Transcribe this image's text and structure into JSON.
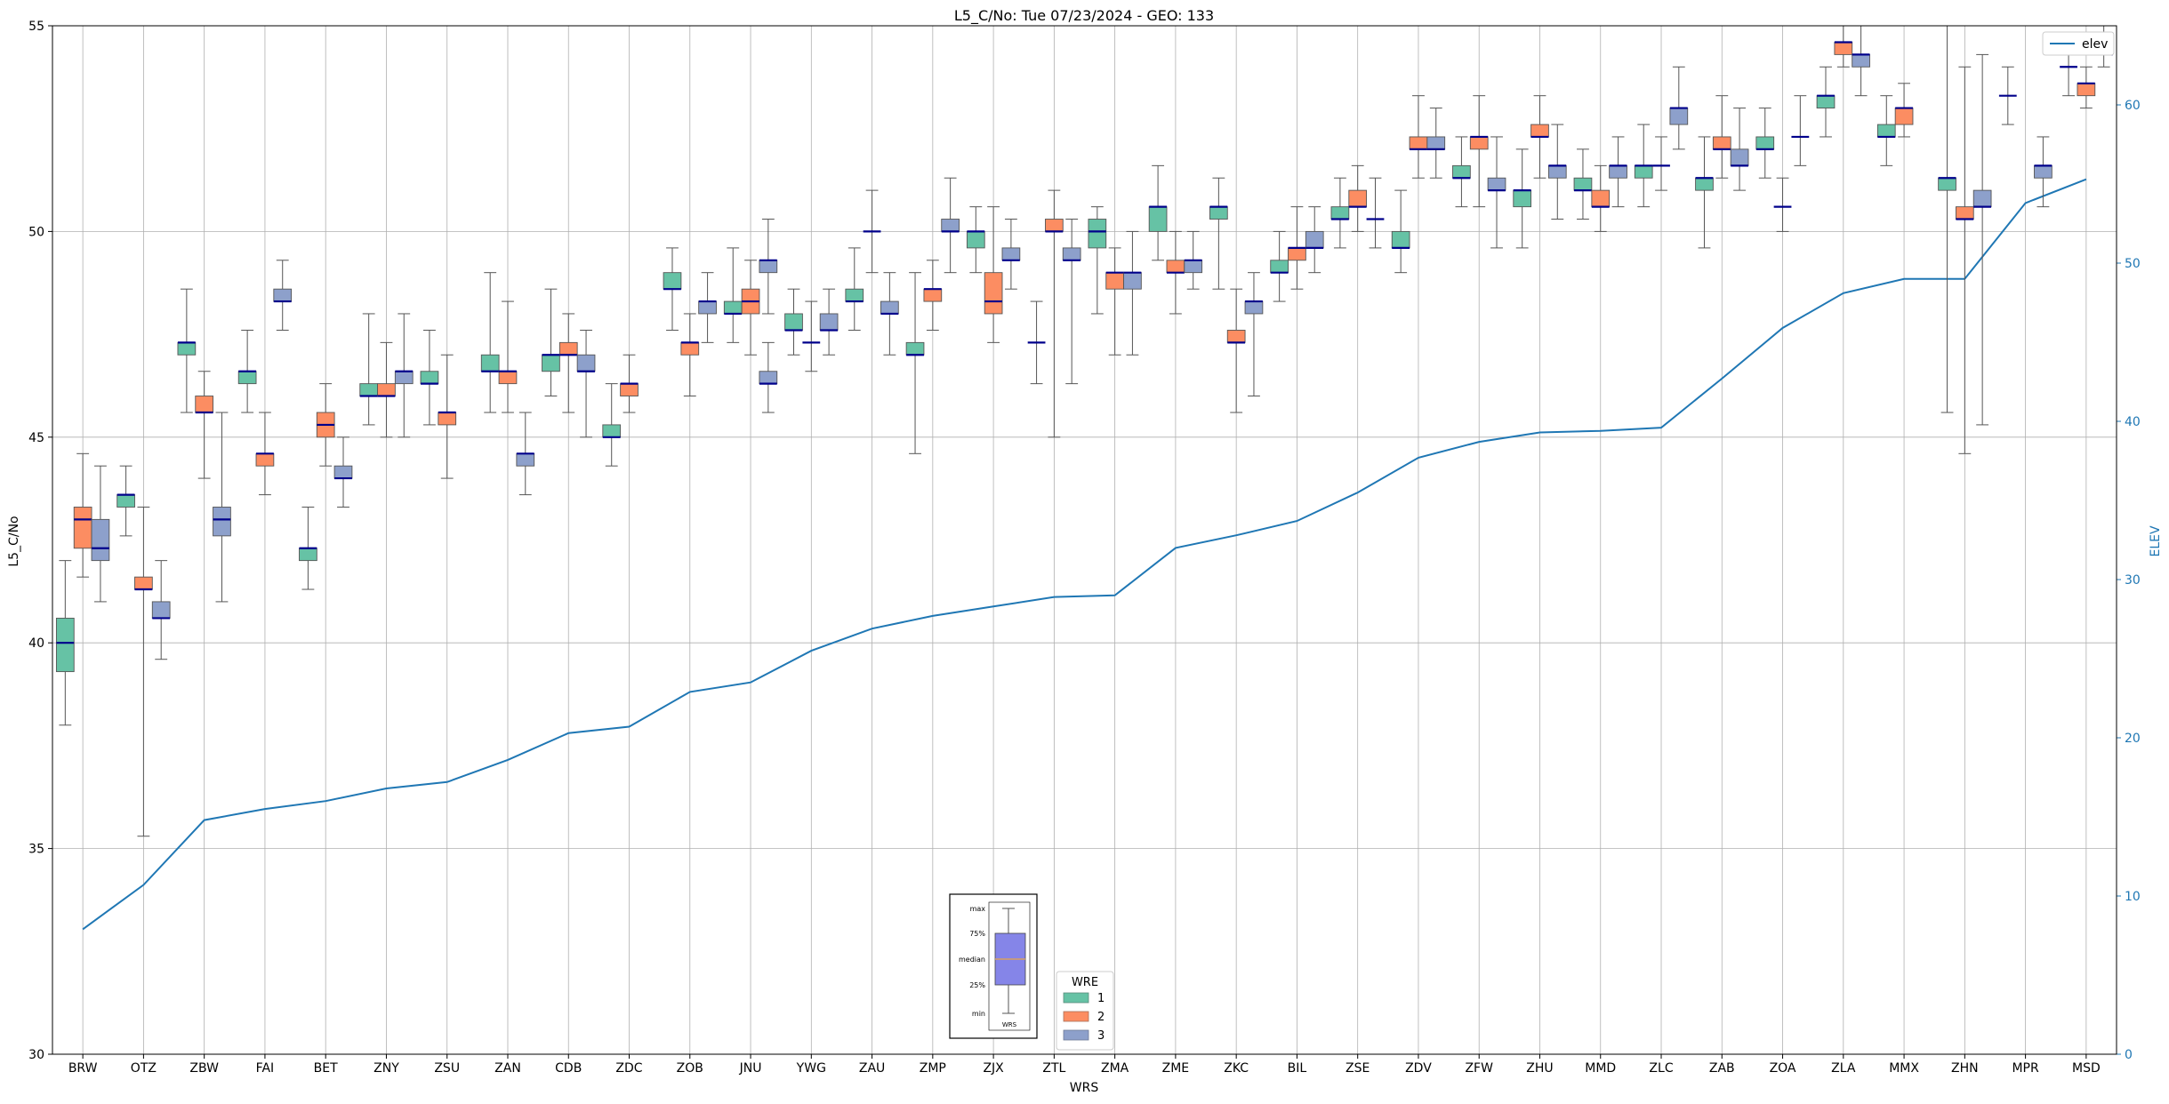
{
  "chart_data": {
    "type": "box",
    "title": "L5_C/No: Tue 07/23/2024 - GEO: 133",
    "xlabel": "WRS",
    "ylabel": "L5_C/No",
    "y2label": "ELEV",
    "ylim": [
      30,
      55
    ],
    "y2lim": [
      0,
      65
    ],
    "yticks": [
      30,
      35,
      40,
      45,
      50,
      55
    ],
    "y2ticks": [
      0,
      10,
      20,
      30,
      40,
      50,
      60
    ],
    "grid": true,
    "categories": [
      "BRW",
      "OTZ",
      "ZBW",
      "FAI",
      "BET",
      "ZNY",
      "ZSU",
      "ZAN",
      "CDB",
      "ZDC",
      "ZOB",
      "JNU",
      "YWG",
      "ZAU",
      "ZMP",
      "ZJX",
      "ZTL",
      "ZMA",
      "ZME",
      "ZKC",
      "BIL",
      "ZSE",
      "ZDV",
      "ZFW",
      "ZHU",
      "MMD",
      "ZLC",
      "ZAB",
      "ZOA",
      "ZLA",
      "MMX",
      "ZHN",
      "MPR",
      "MSD"
    ],
    "series_colors": {
      "1": "#66c2a5",
      "2": "#fc8d62",
      "3": "#8da0cb"
    },
    "median_color": "#00008b",
    "elev_color": "#1f77b4",
    "elev": [
      7.9,
      10.7,
      14.8,
      15.5,
      16.0,
      16.8,
      17.2,
      18.6,
      20.3,
      20.7,
      22.9,
      23.5,
      25.5,
      26.9,
      27.7,
      28.3,
      28.9,
      29.0,
      32.0,
      32.8,
      33.7,
      35.5,
      37.7,
      38.7,
      39.3,
      39.4,
      39.6,
      42.7,
      45.9,
      48.1,
      49.0,
      49.0,
      53.8,
      55.3
    ],
    "boxes": [
      {
        "wrs": "BRW",
        "rcvr": 1,
        "min": 38.0,
        "q1": 39.3,
        "med": 40.0,
        "q3": 40.6,
        "max": 42.0
      },
      {
        "wrs": "BRW",
        "rcvr": 2,
        "min": 41.6,
        "q1": 42.3,
        "med": 43.0,
        "q3": 43.3,
        "max": 44.6
      },
      {
        "wrs": "BRW",
        "rcvr": 3,
        "min": 41.0,
        "q1": 42.0,
        "med": 42.3,
        "q3": 43.0,
        "max": 44.3
      },
      {
        "wrs": "OTZ",
        "rcvr": 1,
        "min": 42.6,
        "q1": 43.3,
        "med": 43.6,
        "q3": 43.6,
        "max": 44.3
      },
      {
        "wrs": "OTZ",
        "rcvr": 2,
        "min": 35.3,
        "q1": 41.3,
        "med": 41.3,
        "q3": 41.6,
        "max": 43.3
      },
      {
        "wrs": "OTZ",
        "rcvr": 3,
        "min": 39.6,
        "q1": 40.6,
        "med": 40.6,
        "q3": 41.0,
        "max": 42.0
      },
      {
        "wrs": "ZBW",
        "rcvr": 1,
        "min": 45.6,
        "q1": 47.0,
        "med": 47.3,
        "q3": 47.3,
        "max": 48.6
      },
      {
        "wrs": "ZBW",
        "rcvr": 2,
        "min": 44.0,
        "q1": 45.6,
        "med": 45.6,
        "q3": 46.0,
        "max": 46.6
      },
      {
        "wrs": "ZBW",
        "rcvr": 3,
        "min": 41.0,
        "q1": 42.6,
        "med": 43.0,
        "q3": 43.3,
        "max": 45.6
      },
      {
        "wrs": "FAI",
        "rcvr": 1,
        "min": 45.6,
        "q1": 46.3,
        "med": 46.6,
        "q3": 46.6,
        "max": 47.6
      },
      {
        "wrs": "FAI",
        "rcvr": 2,
        "min": 43.6,
        "q1": 44.3,
        "med": 44.6,
        "q3": 44.6,
        "max": 45.6
      },
      {
        "wrs": "FAI",
        "rcvr": 3,
        "min": 47.6,
        "q1": 48.3,
        "med": 48.3,
        "q3": 48.6,
        "max": 49.3
      },
      {
        "wrs": "BET",
        "rcvr": 1,
        "min": 41.3,
        "q1": 42.0,
        "med": 42.3,
        "q3": 42.3,
        "max": 43.3
      },
      {
        "wrs": "BET",
        "rcvr": 2,
        "min": 44.3,
        "q1": 45.0,
        "med": 45.3,
        "q3": 45.6,
        "max": 46.3
      },
      {
        "wrs": "BET",
        "rcvr": 3,
        "min": 43.3,
        "q1": 44.0,
        "med": 44.0,
        "q3": 44.3,
        "max": 45.0
      },
      {
        "wrs": "ZNY",
        "rcvr": 1,
        "min": 45.3,
        "q1": 46.0,
        "med": 46.0,
        "q3": 46.3,
        "max": 48.0
      },
      {
        "wrs": "ZNY",
        "rcvr": 2,
        "min": 45.0,
        "q1": 46.0,
        "med": 46.0,
        "q3": 46.3,
        "max": 47.3
      },
      {
        "wrs": "ZNY",
        "rcvr": 3,
        "min": 45.0,
        "q1": 46.3,
        "med": 46.6,
        "q3": 46.6,
        "max": 48.0
      },
      {
        "wrs": "ZSU",
        "rcvr": 1,
        "min": 45.3,
        "q1": 46.3,
        "med": 46.3,
        "q3": 46.6,
        "max": 47.6
      },
      {
        "wrs": "ZSU",
        "rcvr": 2,
        "min": 44.0,
        "q1": 45.3,
        "med": 45.6,
        "q3": 45.6,
        "max": 47.0
      },
      {
        "wrs": "ZAN",
        "rcvr": 1,
        "min": 45.6,
        "q1": 46.6,
        "med": 46.6,
        "q3": 47.0,
        "max": 49.0
      },
      {
        "wrs": "ZAN",
        "rcvr": 2,
        "min": 45.6,
        "q1": 46.3,
        "med": 46.6,
        "q3": 46.6,
        "max": 48.3
      },
      {
        "wrs": "ZAN",
        "rcvr": 3,
        "min": 43.6,
        "q1": 44.3,
        "med": 44.6,
        "q3": 44.6,
        "max": 45.6
      },
      {
        "wrs": "CDB",
        "rcvr": 1,
        "min": 46.0,
        "q1": 46.6,
        "med": 47.0,
        "q3": 47.0,
        "max": 48.6
      },
      {
        "wrs": "CDB",
        "rcvr": 2,
        "min": 45.6,
        "q1": 47.0,
        "med": 47.0,
        "q3": 47.3,
        "max": 48.0
      },
      {
        "wrs": "CDB",
        "rcvr": 3,
        "min": 45.0,
        "q1": 46.6,
        "med": 46.6,
        "q3": 47.0,
        "max": 47.6
      },
      {
        "wrs": "ZDC",
        "rcvr": 1,
        "min": 44.3,
        "q1": 45.0,
        "med": 45.0,
        "q3": 45.3,
        "max": 46.3
      },
      {
        "wrs": "ZDC",
        "rcvr": 2,
        "min": 45.6,
        "q1": 46.0,
        "med": 46.3,
        "q3": 46.3,
        "max": 47.0
      },
      {
        "wrs": "ZOB",
        "rcvr": 3,
        "min": 47.3,
        "q1": 48.0,
        "med": 48.3,
        "q3": 48.3,
        "max": 49.0
      },
      {
        "wrs": "ZOB",
        "rcvr": 1,
        "min": 47.6,
        "q1": 48.6,
        "med": 48.6,
        "q3": 49.0,
        "max": 49.6
      },
      {
        "wrs": "ZOB",
        "rcvr": 2,
        "min": 46.0,
        "q1": 47.0,
        "med": 47.3,
        "q3": 47.3,
        "max": 48.0
      },
      {
        "wrs": "JNU",
        "rcvr": 3,
        "min": 48.0,
        "q1": 49.0,
        "med": 49.3,
        "q3": 49.3,
        "max": 50.3
      },
      {
        "wrs": "JNU",
        "rcvr": 1,
        "min": 47.3,
        "q1": 48.0,
        "med": 48.0,
        "q3": 48.3,
        "max": 49.6
      },
      {
        "wrs": "JNU",
        "rcvr": 2,
        "min": 47.0,
        "q1": 48.0,
        "med": 48.3,
        "q3": 48.6,
        "max": 49.3
      },
      {
        "wrs": "JNU",
        "rcvr": 3,
        "min": 45.6,
        "q1": 46.3,
        "med": 46.3,
        "q3": 46.6,
        "max": 47.3
      },
      {
        "wrs": "YWG",
        "rcvr": 1,
        "min": 47.0,
        "q1": 47.6,
        "med": 47.6,
        "q3": 48.0,
        "max": 48.6
      },
      {
        "wrs": "YWG",
        "rcvr": 2,
        "min": 46.6,
        "q1": 47.3,
        "med": 47.3,
        "q3": 47.3,
        "max": 48.3
      },
      {
        "wrs": "YWG",
        "rcvr": 3,
        "min": 47.0,
        "q1": 47.6,
        "med": 47.6,
        "q3": 48.0,
        "max": 48.6
      },
      {
        "wrs": "ZAU",
        "rcvr": 1,
        "min": 47.6,
        "q1": 48.3,
        "med": 48.3,
        "q3": 48.6,
        "max": 49.6
      },
      {
        "wrs": "ZAU",
        "rcvr": 2,
        "min": 49.0,
        "q1": 50.0,
        "med": 50.0,
        "q3": 50.0,
        "max": 51.0
      },
      {
        "wrs": "ZAU",
        "rcvr": 3,
        "min": 47.0,
        "q1": 48.0,
        "med": 48.0,
        "q3": 48.3,
        "max": 49.0
      },
      {
        "wrs": "ZMP",
        "rcvr": 1,
        "min": 44.6,
        "q1": 47.0,
        "med": 47.0,
        "q3": 47.3,
        "max": 49.0
      },
      {
        "wrs": "ZMP",
        "rcvr": 2,
        "min": 47.6,
        "q1": 48.3,
        "med": 48.6,
        "q3": 48.6,
        "max": 49.3
      },
      {
        "wrs": "ZMP",
        "rcvr": 3,
        "min": 49.0,
        "q1": 50.0,
        "med": 50.0,
        "q3": 50.3,
        "max": 51.3
      },
      {
        "wrs": "ZJX",
        "rcvr": 1,
        "min": 49.0,
        "q1": 49.6,
        "med": 50.0,
        "q3": 50.0,
        "max": 50.6
      },
      {
        "wrs": "ZJX",
        "rcvr": 2,
        "min": 47.3,
        "q1": 48.0,
        "med": 48.3,
        "q3": 49.0,
        "max": 50.6
      },
      {
        "wrs": "ZJX",
        "rcvr": 3,
        "min": 48.6,
        "q1": 49.3,
        "med": 49.3,
        "q3": 49.6,
        "max": 50.3
      },
      {
        "wrs": "ZTL",
        "rcvr": 1,
        "min": 46.3,
        "q1": 47.3,
        "med": 47.3,
        "q3": 47.3,
        "max": 48.3
      },
      {
        "wrs": "ZTL",
        "rcvr": 2,
        "min": 45.0,
        "q1": 50.0,
        "med": 50.0,
        "q3": 50.3,
        "max": 51.0
      },
      {
        "wrs": "ZTL",
        "rcvr": 3,
        "min": 46.3,
        "q1": 49.3,
        "med": 49.3,
        "q3": 49.6,
        "max": 50.3
      },
      {
        "wrs": "ZMA",
        "rcvr": 1,
        "min": 48.0,
        "q1": 49.6,
        "med": 50.0,
        "q3": 50.3,
        "max": 50.6
      },
      {
        "wrs": "ZMA",
        "rcvr": 2,
        "min": 47.0,
        "q1": 48.6,
        "med": 49.0,
        "q3": 49.0,
        "max": 49.6
      },
      {
        "wrs": "ZMA",
        "rcvr": 3,
        "min": 47.0,
        "q1": 48.6,
        "med": 49.0,
        "q3": 49.0,
        "max": 50.0
      },
      {
        "wrs": "ZME",
        "rcvr": 1,
        "min": 49.3,
        "q1": 50.0,
        "med": 50.6,
        "q3": 50.6,
        "max": 51.6
      },
      {
        "wrs": "ZME",
        "rcvr": 2,
        "min": 48.0,
        "q1": 49.0,
        "med": 49.0,
        "q3": 49.3,
        "max": 50.0
      },
      {
        "wrs": "ZME",
        "rcvr": 3,
        "min": 48.6,
        "q1": 49.0,
        "med": 49.3,
        "q3": 49.3,
        "max": 50.0
      },
      {
        "wrs": "ZKC",
        "rcvr": 1,
        "min": 48.6,
        "q1": 50.3,
        "med": 50.6,
        "q3": 50.6,
        "max": 51.3
      },
      {
        "wrs": "ZKC",
        "rcvr": 2,
        "min": 45.6,
        "q1": 47.3,
        "med": 47.3,
        "q3": 47.6,
        "max": 48.6
      },
      {
        "wrs": "ZKC",
        "rcvr": 3,
        "min": 46.0,
        "q1": 48.0,
        "med": 48.3,
        "q3": 48.3,
        "max": 49.0
      },
      {
        "wrs": "BIL",
        "rcvr": 1,
        "min": 48.3,
        "q1": 49.0,
        "med": 49.0,
        "q3": 49.3,
        "max": 50.0
      },
      {
        "wrs": "BIL",
        "rcvr": 2,
        "min": 48.6,
        "q1": 49.3,
        "med": 49.6,
        "q3": 49.6,
        "max": 50.6
      },
      {
        "wrs": "BIL",
        "rcvr": 3,
        "min": 49.0,
        "q1": 49.6,
        "med": 49.6,
        "q3": 50.0,
        "max": 50.6
      },
      {
        "wrs": "ZSE",
        "rcvr": 1,
        "min": 49.6,
        "q1": 50.3,
        "med": 50.3,
        "q3": 50.6,
        "max": 51.3
      },
      {
        "wrs": "ZSE",
        "rcvr": 2,
        "min": 50.0,
        "q1": 50.6,
        "med": 50.6,
        "q3": 51.0,
        "max": 51.6
      },
      {
        "wrs": "ZSE",
        "rcvr": 3,
        "min": 49.6,
        "q1": 50.3,
        "med": 50.3,
        "q3": 50.3,
        "max": 51.3
      },
      {
        "wrs": "ZDV",
        "rcvr": 1,
        "min": 49.0,
        "q1": 49.6,
        "med": 49.6,
        "q3": 50.0,
        "max": 51.0
      },
      {
        "wrs": "ZDV",
        "rcvr": 2,
        "min": 51.3,
        "q1": 52.0,
        "med": 52.0,
        "q3": 52.3,
        "max": 53.3
      },
      {
        "wrs": "ZDV",
        "rcvr": 3,
        "min": 51.3,
        "q1": 52.0,
        "med": 52.0,
        "q3": 52.3,
        "max": 53.0
      },
      {
        "wrs": "ZFW",
        "rcvr": 1,
        "min": 50.6,
        "q1": 51.3,
        "med": 51.3,
        "q3": 51.6,
        "max": 52.3
      },
      {
        "wrs": "ZFW",
        "rcvr": 2,
        "min": 50.6,
        "q1": 52.0,
        "med": 52.3,
        "q3": 52.3,
        "max": 53.3
      },
      {
        "wrs": "ZFW",
        "rcvr": 3,
        "min": 49.6,
        "q1": 51.0,
        "med": 51.0,
        "q3": 51.3,
        "max": 52.3
      },
      {
        "wrs": "ZHU",
        "rcvr": 1,
        "min": 49.6,
        "q1": 50.6,
        "med": 51.0,
        "q3": 51.0,
        "max": 52.0
      },
      {
        "wrs": "ZHU",
        "rcvr": 2,
        "min": 51.3,
        "q1": 52.3,
        "med": 52.3,
        "q3": 52.6,
        "max": 53.3
      },
      {
        "wrs": "ZHU",
        "rcvr": 3,
        "min": 50.3,
        "q1": 51.3,
        "med": 51.6,
        "q3": 51.6,
        "max": 52.6
      },
      {
        "wrs": "MMD",
        "rcvr": 1,
        "min": 50.3,
        "q1": 51.0,
        "med": 51.0,
        "q3": 51.3,
        "max": 52.0
      },
      {
        "wrs": "MMD",
        "rcvr": 2,
        "min": 50.0,
        "q1": 50.6,
        "med": 50.6,
        "q3": 51.0,
        "max": 51.6
      },
      {
        "wrs": "MMD",
        "rcvr": 3,
        "min": 50.6,
        "q1": 51.3,
        "med": 51.6,
        "q3": 51.6,
        "max": 52.3
      },
      {
        "wrs": "ZLC",
        "rcvr": 1,
        "min": 50.6,
        "q1": 51.3,
        "med": 51.6,
        "q3": 51.6,
        "max": 52.6
      },
      {
        "wrs": "ZLC",
        "rcvr": 2,
        "min": 51.0,
        "q1": 51.6,
        "med": 51.6,
        "q3": 51.6,
        "max": 52.3
      },
      {
        "wrs": "ZLC",
        "rcvr": 3,
        "min": 52.0,
        "q1": 52.6,
        "med": 53.0,
        "q3": 53.0,
        "max": 54.0
      },
      {
        "wrs": "ZAB",
        "rcvr": 1,
        "min": 49.6,
        "q1": 51.0,
        "med": 51.3,
        "q3": 51.3,
        "max": 52.3
      },
      {
        "wrs": "ZAB",
        "rcvr": 2,
        "min": 51.3,
        "q1": 52.0,
        "med": 52.0,
        "q3": 52.3,
        "max": 53.3
      },
      {
        "wrs": "ZAB",
        "rcvr": 3,
        "min": 51.0,
        "q1": 51.6,
        "med": 51.6,
        "q3": 52.0,
        "max": 53.0
      },
      {
        "wrs": "ZOA",
        "rcvr": 1,
        "min": 51.3,
        "q1": 52.0,
        "med": 52.0,
        "q3": 52.3,
        "max": 53.0
      },
      {
        "wrs": "ZOA",
        "rcvr": 2,
        "min": 50.0,
        "q1": 50.6,
        "med": 50.6,
        "q3": 50.6,
        "max": 51.3
      },
      {
        "wrs": "ZOA",
        "rcvr": 3,
        "min": 51.6,
        "q1": 52.3,
        "med": 52.3,
        "q3": 52.3,
        "max": 53.3
      },
      {
        "wrs": "ZLA",
        "rcvr": 1,
        "min": 52.3,
        "q1": 53.0,
        "med": 53.3,
        "q3": 53.3,
        "max": 54.0
      },
      {
        "wrs": "ZLA",
        "rcvr": 2,
        "min": 54.0,
        "q1": 54.3,
        "med": 54.6,
        "q3": 54.6,
        "max": 55.0
      },
      {
        "wrs": "ZLA",
        "rcvr": 3,
        "min": 53.3,
        "q1": 54.0,
        "med": 54.3,
        "q3": 54.3,
        "max": 55.0
      },
      {
        "wrs": "MMX",
        "rcvr": 1,
        "min": 51.6,
        "q1": 52.3,
        "med": 52.3,
        "q3": 52.6,
        "max": 53.3
      },
      {
        "wrs": "MMX",
        "rcvr": 2,
        "min": 52.3,
        "q1": 52.6,
        "med": 53.0,
        "q3": 53.0,
        "max": 53.6
      },
      {
        "wrs": "ZHN",
        "rcvr": 1,
        "min": 45.6,
        "q1": 51.0,
        "med": 51.3,
        "q3": 51.3,
        "max": 55.0
      },
      {
        "wrs": "ZHN",
        "rcvr": 2,
        "min": 44.6,
        "q1": 50.3,
        "med": 50.3,
        "q3": 50.6,
        "max": 54.0
      },
      {
        "wrs": "ZHN",
        "rcvr": 3,
        "min": 45.3,
        "q1": 50.6,
        "med": 50.6,
        "q3": 51.0,
        "max": 54.3
      },
      {
        "wrs": "MPR",
        "rcvr": 1,
        "min": 52.6,
        "q1": 53.3,
        "med": 53.3,
        "q3": 53.3,
        "max": 54.0
      },
      {
        "wrs": "MPR",
        "rcvr": 3,
        "min": 50.6,
        "q1": 51.3,
        "med": 51.6,
        "q3": 51.6,
        "max": 52.3
      },
      {
        "wrs": "MSD",
        "rcvr": 1,
        "min": 53.3,
        "q1": 54.0,
        "med": 54.0,
        "q3": 54.0,
        "max": 54.6
      },
      {
        "wrs": "MSD",
        "rcvr": 2,
        "min": 53.0,
        "q1": 53.3,
        "med": 53.6,
        "q3": 53.6,
        "max": 54.0
      },
      {
        "wrs": "MSD",
        "rcvr": 3,
        "min": 54.0,
        "q1": 54.3,
        "med": 54.3,
        "q3": 54.6,
        "max": 55.0
      }
    ],
    "legend": {
      "title": "WRE",
      "entries": [
        "1",
        "2",
        "3"
      ]
    },
    "line_legend": {
      "label": "elev"
    },
    "box_key": {
      "labels": [
        "max",
        "75%",
        "median",
        "25%",
        "min"
      ],
      "xlabel": "WRS"
    }
  }
}
